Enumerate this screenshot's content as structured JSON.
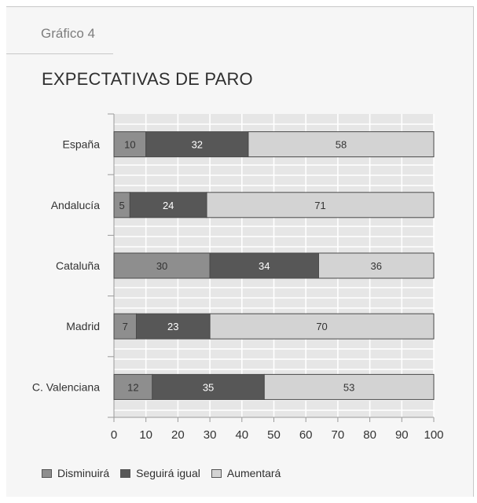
{
  "figure_label": "Gráfico 4",
  "title": "EXPECTATIVAS DE PARO",
  "chart_data": {
    "type": "bar",
    "orientation": "horizontal",
    "stacked": true,
    "title": "EXPECTATIVAS DE PARO",
    "categories": [
      "España",
      "Andalucía",
      "Cataluña",
      "Madrid",
      "C. Valenciana"
    ],
    "series": [
      {
        "name": "Disminuirá",
        "values": [
          10,
          5,
          30,
          7,
          12
        ],
        "color": "#8e8e8e"
      },
      {
        "name": "Seguirá igual",
        "values": [
          32,
          24,
          34,
          23,
          35
        ],
        "color": "#575757"
      },
      {
        "name": "Aumentará",
        "values": [
          58,
          71,
          36,
          70,
          53
        ],
        "color": "#d3d3d3"
      }
    ],
    "xlim": [
      0,
      100
    ],
    "xticks": [
      "0",
      "10",
      "20",
      "30",
      "40",
      "50",
      "60",
      "70",
      "80",
      "90",
      "100"
    ],
    "grid": true,
    "legend_position": "bottom-left"
  },
  "legend": [
    "Disminuirá",
    "Seguirá igual",
    "Aumentará"
  ]
}
